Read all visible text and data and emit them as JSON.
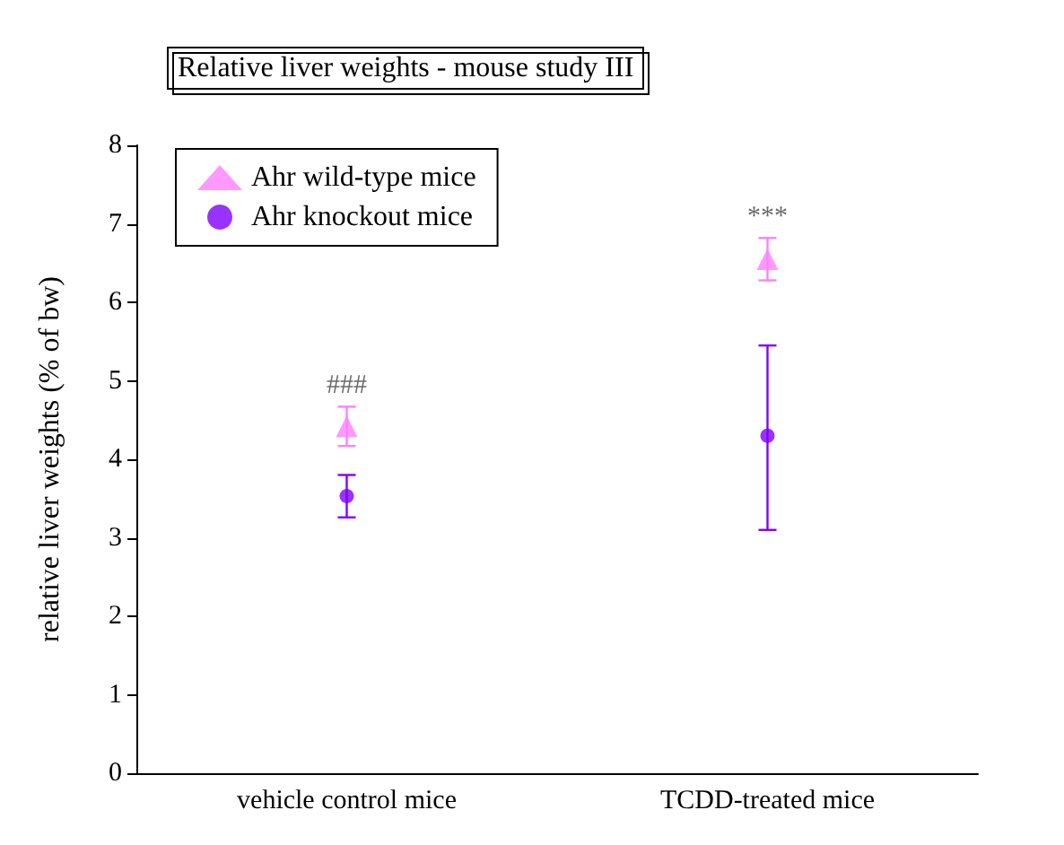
{
  "chart_data": {
    "type": "scatter",
    "title": "Relative liver weights - mouse study III",
    "ylabel": "relative liver weights (% of bw)",
    "categories": [
      "vehicle control mice",
      "TCDD-treated mice"
    ],
    "series": [
      {
        "name": "Ahr wild-type mice",
        "color": "#ff80ff",
        "marker": "triangle",
        "values": [
          4.42,
          6.55
        ],
        "errors": [
          0.25,
          0.27
        ]
      },
      {
        "name": "Ahr knockout mice",
        "color": "#8000ff",
        "marker": "circle",
        "values": [
          3.53,
          4.3
        ],
        "errors": [
          0.27,
          [
            3.1,
            5.45
          ]
        ]
      }
    ],
    "ylim": [
      0,
      8
    ],
    "yticks": [
      0,
      1,
      2,
      3,
      4,
      5,
      6,
      7,
      8
    ],
    "grid": false,
    "legend": "top left",
    "annotations": [
      "###",
      "***"
    ]
  }
}
